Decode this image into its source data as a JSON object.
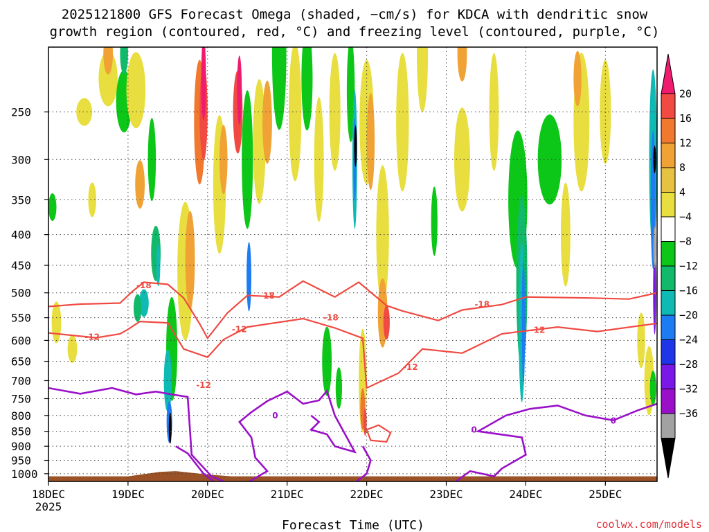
{
  "title": {
    "line1": "2025121800 GFS Forecast Omega (shaded, −cm/s) for KDCA with dendritic snow",
    "line2": "growth region (contoured, red, °C) and freezing level (contoured, purple, °C)"
  },
  "xlabel": "Forecast Time (UTC)",
  "credit": "coolwx.com/models",
  "colors": {
    "dgz": "#ef4a41",
    "freezing": "#9a10c8",
    "terrain": "#9a5226",
    "credit": "#e0303a"
  },
  "chart_data": {
    "type": "heatmap",
    "y_axis": {
      "label": "",
      "scale": "log-pressure",
      "range": [
        1030,
        195
      ],
      "ticks": [
        250,
        300,
        350,
        400,
        450,
        500,
        550,
        600,
        650,
        700,
        750,
        800,
        850,
        900,
        950,
        1000
      ],
      "tick_labels": [
        "250",
        "300",
        "350",
        "400",
        "450",
        "500",
        "550",
        "600",
        "650",
        "700",
        "750",
        "800",
        "850",
        "900",
        "950",
        "1000"
      ]
    },
    "x_axis": {
      "range_days_from_start": [
        0,
        7.65
      ],
      "ticks": [
        0,
        1,
        2,
        3,
        4,
        5,
        6,
        7
      ],
      "tick_labels": [
        "18DEC",
        "19DEC",
        "20DEC",
        "21DEC",
        "22DEC",
        "23DEC",
        "24DEC",
        "25DEC"
      ],
      "year_label": "2025"
    },
    "grid": true,
    "colorbar": {
      "labels": [
        "20",
        "16",
        "12",
        "8",
        "4",
        "−4",
        "−8",
        "−12",
        "−16",
        "−20",
        "−24",
        "−28",
        "−32",
        "−36"
      ],
      "colors": [
        "#ee1b6e",
        "#f04a42",
        "#f0782f",
        "#f0a235",
        "#e6c142",
        "#e8de3f",
        "#ffffff",
        "#0cc618",
        "#12b96a",
        "#10bab4",
        "#1e7cf2",
        "#1f36e8",
        "#7a18e8",
        "#9a10c8",
        "#a2a2a2",
        "#000000"
      ]
    },
    "contours": {
      "dgz_minus18": [
        [
          0,
          527
        ],
        [
          0.4,
          522
        ],
        [
          0.9,
          520
        ],
        [
          1.05,
          498
        ],
        [
          1.2,
          480
        ],
        [
          1.5,
          484
        ],
        [
          1.7,
          510
        ],
        [
          1.9,
          563
        ],
        [
          2.0,
          595
        ],
        [
          2.25,
          540
        ],
        [
          2.5,
          505
        ],
        [
          2.9,
          508
        ],
        [
          3.2,
          478
        ],
        [
          3.6,
          508
        ],
        [
          3.9,
          480
        ],
        [
          4.25,
          525
        ],
        [
          4.45,
          536
        ],
        [
          4.9,
          556
        ],
        [
          5.2,
          534
        ],
        [
          5.7,
          523
        ],
        [
          6.0,
          508
        ],
        [
          6.8,
          510
        ],
        [
          7.3,
          512
        ],
        [
          7.65,
          500
        ]
      ],
      "dgz_minus12": [
        [
          0,
          583
        ],
        [
          0.6,
          594
        ],
        [
          0.9,
          585
        ],
        [
          1.0,
          575
        ],
        [
          1.15,
          558
        ],
        [
          1.5,
          561
        ],
        [
          1.7,
          620
        ],
        [
          2.0,
          640
        ],
        [
          2.2,
          598
        ],
        [
          2.5,
          570
        ],
        [
          3.2,
          552
        ],
        [
          3.6,
          572
        ],
        [
          3.95,
          595
        ],
        [
          4.0,
          720
        ],
        [
          4.4,
          680
        ],
        [
          4.7,
          620
        ],
        [
          5.2,
          630
        ],
        [
          5.7,
          585
        ],
        [
          6.4,
          570
        ],
        [
          6.9,
          580
        ],
        [
          7.65,
          562
        ]
      ],
      "dgz_minus12_cell": [
        [
          4.0,
          845
        ],
        [
          4.15,
          830
        ],
        [
          4.3,
          855
        ],
        [
          4.25,
          885
        ],
        [
          4.05,
          880
        ],
        [
          4.0,
          845
        ]
      ],
      "freezing_0": [
        [
          0,
          720
        ],
        [
          0.4,
          736
        ],
        [
          0.8,
          720
        ],
        [
          1.1,
          738
        ],
        [
          1.35,
          730
        ],
        [
          1.55,
          738
        ],
        [
          1.75,
          745
        ],
        [
          1.8,
          930
        ],
        [
          2.05,
          1010
        ],
        [
          2.2,
          1030
        ]
      ],
      "freezing_0_b": [
        [
          1.6,
          900
        ],
        [
          1.75,
          925
        ],
        [
          1.95,
          1000
        ],
        [
          2.1,
          1035
        ]
      ],
      "freezing_0_c": [
        [
          2.5,
          1035
        ],
        [
          2.75,
          990
        ],
        [
          2.6,
          940
        ],
        [
          2.55,
          870
        ],
        [
          2.4,
          820
        ],
        [
          2.55,
          790
        ],
        [
          2.75,
          757
        ],
        [
          3.0,
          730
        ],
        [
          3.2,
          765
        ],
        [
          3.4,
          755
        ],
        [
          3.5,
          728
        ],
        [
          3.6,
          800
        ],
        [
          3.85,
          920
        ],
        [
          3.6,
          900
        ],
        [
          3.5,
          860
        ],
        [
          3.3,
          845
        ],
        [
          3.4,
          820
        ],
        [
          3.3,
          800
        ]
      ],
      "freezing_0_d": [
        [
          3.85,
          1035
        ],
        [
          4.0,
          1000
        ],
        [
          4.05,
          950
        ],
        [
          3.95,
          900
        ]
      ],
      "freezing_0_e": [
        [
          5.1,
          1035
        ],
        [
          5.3,
          990
        ],
        [
          5.6,
          1010
        ],
        [
          5.7,
          980
        ],
        [
          6.0,
          930
        ],
        [
          5.95,
          870
        ],
        [
          5.4,
          850
        ],
        [
          5.75,
          800
        ],
        [
          6.05,
          780
        ],
        [
          6.4,
          770
        ],
        [
          6.75,
          800
        ],
        [
          7.1,
          815
        ],
        [
          7.4,
          785
        ],
        [
          7.65,
          765
        ]
      ]
    }
  }
}
